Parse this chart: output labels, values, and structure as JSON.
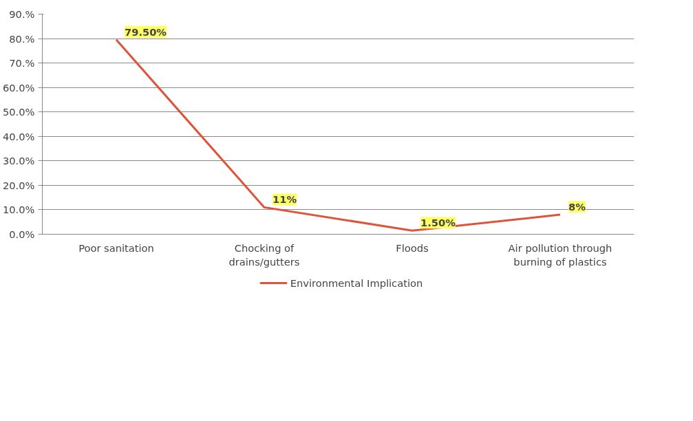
{
  "chart_data": {
    "type": "line",
    "categories": [
      "Poor sanitation",
      "Chocking of drains/gutters",
      "Floods",
      "Air pollution through burning of plastics"
    ],
    "series": [
      {
        "name": "Environmental Implication",
        "color": "#e0533a",
        "values": [
          79.5,
          11,
          1.5,
          8
        ],
        "value_labels": [
          "79.50%",
          "11%",
          "1.50%",
          "8%"
        ]
      }
    ],
    "ylim": [
      0,
      90
    ],
    "yticks": [
      {
        "value": 0,
        "label": "0.0%"
      },
      {
        "value": 10,
        "label": "10.0%"
      },
      {
        "value": 20,
        "label": "20.0%"
      },
      {
        "value": 30,
        "label": "30.0%"
      },
      {
        "value": 40,
        "label": "40.0%"
      },
      {
        "value": 50,
        "label": "50.0%"
      },
      {
        "value": 60,
        "label": "60.0%"
      },
      {
        "value": 70,
        "label": "70.%"
      },
      {
        "value": 80,
        "label": "80.%"
      },
      {
        "value": 90,
        "label": "90.%"
      }
    ],
    "grid": "y",
    "legend": "bottom",
    "marker": "none",
    "line_style": "solid"
  }
}
